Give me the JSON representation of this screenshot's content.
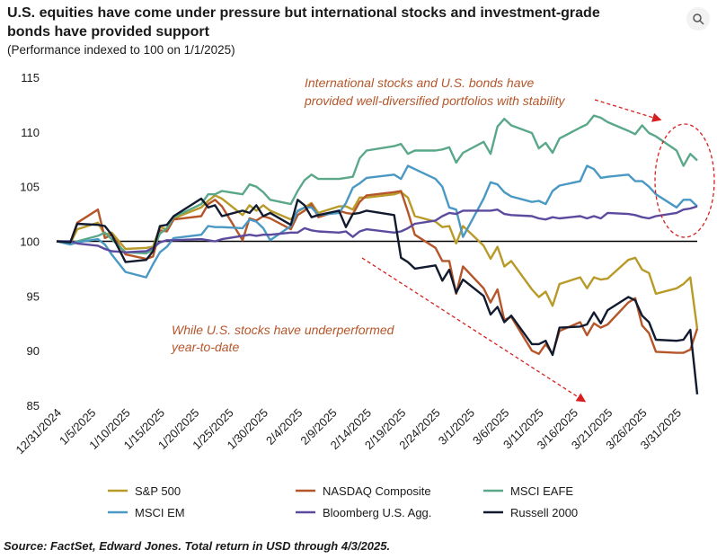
{
  "header": {
    "title": "U.S. equities have come under pressure but international  stocks and investment-grade bonds have provided support",
    "subtitle": "(Performance indexed to 100 on 1/1/2025)",
    "expand_icon": "expand-icon"
  },
  "source": "Source: FactSet, Edward Jones. Total return in USD through 4/3/2025.",
  "chart_data": {
    "type": "line",
    "title": "U.S. equities have come under pressure but international  stocks and investment-grade bonds have provided support",
    "subtitle": "(Performance indexed to 100 on 1/1/2025)",
    "ylim": [
      85,
      115
    ],
    "yticks": [
      "85",
      "90",
      "95",
      "100",
      "105",
      "110",
      "115"
    ],
    "xtick_labels": [
      "12/31/2024",
      "1/5/2025",
      "1/10/2025",
      "1/15/2025",
      "1/20/2025",
      "1/25/2025",
      "1/30/2025",
      "2/4/2025",
      "2/9/2025",
      "2/14/2025",
      "2/19/2025",
      "2/24/2025",
      "3/1/2025",
      "3/6/2025",
      "3/11/2025",
      "3/16/2025",
      "3/21/2025",
      "3/26/2025",
      "3/31/2025"
    ],
    "reference_line": 100,
    "legend_position": "bottom",
    "annotations": [
      {
        "lines": [
          "International stocks and U.S. bonds have",
          "provided well-diversified portfolios with stability"
        ]
      },
      {
        "lines": [
          "While U.S. stocks have underperformed",
          "year-to-date"
        ]
      }
    ],
    "series": [
      {
        "name": "S&P 500",
        "color": "#b89a28",
        "x": [
          "12/31/2024",
          "1/2/2025",
          "1/3/2025",
          "1/6/2025",
          "1/7/2025",
          "1/8/2025",
          "1/10/2025",
          "1/13/2025",
          "1/14/2025",
          "1/15/2025",
          "1/16/2025",
          "1/17/2025",
          "1/21/2025",
          "1/22/2025",
          "1/23/2025",
          "1/24/2025",
          "1/27/2025",
          "1/28/2025",
          "1/29/2025",
          "1/30/2025",
          "1/31/2025",
          "2/3/2025",
          "2/4/2025",
          "2/5/2025",
          "2/6/2025",
          "2/7/2025",
          "2/10/2025",
          "2/11/2025",
          "2/12/2025",
          "2/13/2025",
          "2/14/2025",
          "2/18/2025",
          "2/19/2025",
          "2/20/2025",
          "2/21/2025",
          "2/24/2025",
          "2/25/2025",
          "2/26/2025",
          "2/27/2025",
          "2/28/2025",
          "3/3/2025",
          "3/4/2025",
          "3/5/2025",
          "3/6/2025",
          "3/7/2025",
          "3/10/2025",
          "3/11/2025",
          "3/12/2025",
          "3/13/2025",
          "3/14/2025",
          "3/17/2025",
          "3/18/2025",
          "3/19/2025",
          "3/20/2025",
          "3/21/2025",
          "3/24/2025",
          "3/25/2025",
          "3/26/2025",
          "3/27/2025",
          "3/28/2025",
          "3/31/2025",
          "4/1/2025",
          "4/2/2025",
          "4/3/2025"
        ],
        "y": [
          100,
          99.8,
          101.1,
          101.7,
          100.6,
          100.8,
          99.3,
          99.4,
          99.5,
          101.3,
          101.1,
          102.1,
          103.1,
          103.7,
          104.2,
          103.9,
          102.4,
          103.3,
          102.8,
          103.3,
          102.8,
          102.0,
          102.7,
          103.1,
          103.5,
          102.6,
          103.2,
          103.2,
          102.9,
          104.0,
          104.0,
          104.3,
          104.5,
          104.0,
          102.3,
          101.8,
          101.3,
          101.4,
          99.8,
          101.4,
          99.6,
          98.4,
          99.5,
          97.7,
          98.2,
          95.6,
          94.9,
          95.4,
          94.1,
          96.1,
          96.7,
          95.7,
          96.7,
          96.5,
          96.6,
          98.3,
          98.5,
          97.4,
          97.1,
          95.2,
          95.7,
          96.1,
          96.7,
          92.0
        ]
      },
      {
        "name": "NASDAQ Composite",
        "color": "#b5562a",
        "x": [
          "12/31/2024",
          "1/2/2025",
          "1/3/2025",
          "1/6/2025",
          "1/7/2025",
          "1/8/2025",
          "1/10/2025",
          "1/13/2025",
          "1/14/2025",
          "1/15/2025",
          "1/16/2025",
          "1/17/2025",
          "1/21/2025",
          "1/22/2025",
          "1/23/2025",
          "1/24/2025",
          "1/27/2025",
          "1/28/2025",
          "1/29/2025",
          "1/30/2025",
          "1/31/2025",
          "2/3/2025",
          "2/4/2025",
          "2/5/2025",
          "2/6/2025",
          "2/7/2025",
          "2/10/2025",
          "2/11/2025",
          "2/12/2025",
          "2/13/2025",
          "2/14/2025",
          "2/18/2025",
          "2/19/2025",
          "2/20/2025",
          "2/21/2025",
          "2/24/2025",
          "2/25/2025",
          "2/26/2025",
          "2/27/2025",
          "2/28/2025",
          "3/3/2025",
          "3/4/2025",
          "3/5/2025",
          "3/6/2025",
          "3/7/2025",
          "3/10/2025",
          "3/11/2025",
          "3/12/2025",
          "3/13/2025",
          "3/14/2025",
          "3/17/2025",
          "3/18/2025",
          "3/19/2025",
          "3/20/2025",
          "3/21/2025",
          "3/24/2025",
          "3/25/2025",
          "3/26/2025",
          "3/27/2025",
          "3/28/2025",
          "3/31/2025",
          "4/1/2025",
          "4/2/2025",
          "4/3/2025"
        ],
        "y": [
          100,
          99.9,
          101.7,
          102.9,
          100.3,
          100.6,
          98.8,
          98.4,
          98.6,
          101.0,
          100.9,
          102.0,
          102.3,
          103.4,
          103.8,
          103.2,
          100.1,
          102.1,
          101.9,
          102.3,
          102.1,
          101.1,
          102.4,
          102.8,
          103.4,
          102.2,
          102.8,
          102.6,
          102.5,
          103.6,
          104.2,
          104.5,
          104.6,
          102.7,
          100.6,
          99.4,
          98.2,
          98.2,
          95.2,
          97.7,
          95.7,
          94.4,
          95.6,
          92.8,
          93.1,
          90.0,
          89.7,
          90.6,
          89.7,
          91.8,
          92.6,
          91.4,
          92.5,
          92.1,
          92.4,
          94.4,
          94.8,
          92.3,
          91.6,
          89.9,
          89.8,
          89.8,
          90.1,
          92.0
        ]
      },
      {
        "name": "MSCI EAFE",
        "color": "#5aa889",
        "x": [
          "12/31/2024",
          "1/2/2025",
          "1/3/2025",
          "1/6/2025",
          "1/7/2025",
          "1/8/2025",
          "1/10/2025",
          "1/13/2025",
          "1/14/2025",
          "1/15/2025",
          "1/16/2025",
          "1/17/2025",
          "1/21/2025",
          "1/22/2025",
          "1/23/2025",
          "1/24/2025",
          "1/27/2025",
          "1/28/2025",
          "1/29/2025",
          "1/30/2025",
          "1/31/2025",
          "2/3/2025",
          "2/4/2025",
          "2/5/2025",
          "2/6/2025",
          "2/7/2025",
          "2/10/2025",
          "2/11/2025",
          "2/12/2025",
          "2/13/2025",
          "2/14/2025",
          "2/18/2025",
          "2/19/2025",
          "2/20/2025",
          "2/21/2025",
          "2/24/2025",
          "2/25/2025",
          "2/26/2025",
          "2/27/2025",
          "2/28/2025",
          "3/3/2025",
          "3/4/2025",
          "3/5/2025",
          "3/6/2025",
          "3/7/2025",
          "3/10/2025",
          "3/11/2025",
          "3/12/2025",
          "3/13/2025",
          "3/14/2025",
          "3/17/2025",
          "3/18/2025",
          "3/19/2025",
          "3/20/2025",
          "3/21/2025",
          "3/24/2025",
          "3/25/2025",
          "3/26/2025",
          "3/27/2025",
          "3/28/2025",
          "3/31/2025",
          "4/1/2025",
          "4/2/2025",
          "4/3/2025"
        ],
        "y": [
          100,
          99.8,
          100.0,
          100.5,
          100.8,
          100.2,
          99.0,
          98.9,
          99.2,
          100.7,
          101.2,
          102.2,
          103.4,
          104.3,
          104.3,
          104.6,
          104.3,
          105.2,
          105.0,
          104.5,
          103.8,
          103.4,
          104.6,
          105.6,
          106.1,
          105.7,
          105.7,
          105.8,
          105.9,
          107.6,
          108.3,
          108.7,
          108.9,
          108.0,
          108.3,
          108.3,
          108.4,
          108.6,
          107.2,
          108.1,
          109.1,
          108.0,
          110.5,
          111.2,
          110.6,
          109.9,
          108.5,
          109.0,
          108.1,
          109.4,
          110.4,
          110.7,
          111.5,
          111.3,
          110.9,
          110.1,
          109.8,
          110.6,
          109.9,
          109.6,
          108.3,
          106.9,
          108.0,
          107.4
        ]
      },
      {
        "name": "MSCI EM",
        "color": "#4a98c4",
        "x": [
          "12/31/2024",
          "1/2/2025",
          "1/3/2025",
          "1/6/2025",
          "1/7/2025",
          "1/8/2025",
          "1/10/2025",
          "1/13/2025",
          "1/14/2025",
          "1/15/2025",
          "1/16/2025",
          "1/17/2025",
          "1/21/2025",
          "1/22/2025",
          "1/23/2025",
          "1/24/2025",
          "1/27/2025",
          "1/28/2025",
          "1/29/2025",
          "1/30/2025",
          "1/31/2025",
          "2/3/2025",
          "2/4/2025",
          "2/5/2025",
          "2/6/2025",
          "2/7/2025",
          "2/10/2025",
          "2/11/2025",
          "2/12/2025",
          "2/13/2025",
          "2/14/2025",
          "2/18/2025",
          "2/19/2025",
          "2/20/2025",
          "2/21/2025",
          "2/24/2025",
          "2/25/2025",
          "2/26/2025",
          "2/27/2025",
          "2/28/2025",
          "3/3/2025",
          "3/4/2025",
          "3/5/2025",
          "3/6/2025",
          "3/7/2025",
          "3/10/2025",
          "3/11/2025",
          "3/12/2025",
          "3/13/2025",
          "3/14/2025",
          "3/17/2025",
          "3/18/2025",
          "3/19/2025",
          "3/20/2025",
          "3/21/2025",
          "3/24/2025",
          "3/25/2025",
          "3/26/2025",
          "3/27/2025",
          "3/28/2025",
          "3/31/2025",
          "4/1/2025",
          "4/2/2025",
          "4/3/2025"
        ],
        "y": [
          100,
          99.7,
          99.9,
          100.2,
          99.7,
          98.8,
          97.2,
          96.7,
          97.9,
          99.0,
          99.5,
          100.3,
          100.6,
          101.4,
          101.3,
          101.3,
          101.2,
          102.0,
          101.8,
          101.2,
          100.1,
          101.4,
          102.8,
          103.1,
          103.1,
          102.4,
          102.6,
          103.5,
          104.9,
          105.3,
          105.8,
          106.1,
          105.7,
          106.9,
          106.6,
          105.7,
          105.0,
          103.1,
          102.9,
          100.4,
          103.9,
          105.4,
          105.2,
          104.5,
          104.1,
          103.6,
          103.7,
          103.4,
          104.6,
          105.1,
          105.5,
          106.9,
          106.6,
          105.8,
          105.9,
          106.1,
          105.5,
          105.5,
          105.0,
          104.3,
          103.1,
          103.8,
          103.8,
          103.2
        ]
      },
      {
        "name": "Bloomberg U.S. Agg.",
        "color": "#5b4a9e",
        "x": [
          "12/31/2024",
          "1/2/2025",
          "1/3/2025",
          "1/6/2025",
          "1/7/2025",
          "1/8/2025",
          "1/10/2025",
          "1/13/2025",
          "1/14/2025",
          "1/15/2025",
          "1/16/2025",
          "1/17/2025",
          "1/21/2025",
          "1/22/2025",
          "1/23/2025",
          "1/24/2025",
          "1/27/2025",
          "1/28/2025",
          "1/29/2025",
          "1/30/2025",
          "1/31/2025",
          "2/3/2025",
          "2/4/2025",
          "2/5/2025",
          "2/6/2025",
          "2/7/2025",
          "2/10/2025",
          "2/11/2025",
          "2/12/2025",
          "2/13/2025",
          "2/14/2025",
          "2/18/2025",
          "2/19/2025",
          "2/20/2025",
          "2/21/2025",
          "2/24/2025",
          "2/25/2025",
          "2/26/2025",
          "2/27/2025",
          "2/28/2025",
          "3/3/2025",
          "3/4/2025",
          "3/5/2025",
          "3/6/2025",
          "3/7/2025",
          "3/10/2025",
          "3/11/2025",
          "3/12/2025",
          "3/13/2025",
          "3/14/2025",
          "3/17/2025",
          "3/18/2025",
          "3/19/2025",
          "3/20/2025",
          "3/21/2025",
          "3/24/2025",
          "3/25/2025",
          "3/26/2025",
          "3/27/2025",
          "3/28/2025",
          "3/31/2025",
          "4/1/2025",
          "4/2/2025",
          "4/3/2025"
        ],
        "y": [
          100,
          100.0,
          99.8,
          99.6,
          99.3,
          99.1,
          99.0,
          99.1,
          99.4,
          99.9,
          100.1,
          100.1,
          100.2,
          100.1,
          100.0,
          100.2,
          100.5,
          100.6,
          100.5,
          100.6,
          100.6,
          100.8,
          100.8,
          101.2,
          101.0,
          100.9,
          100.8,
          100.9,
          100.4,
          100.9,
          101.1,
          100.8,
          100.9,
          101.2,
          101.6,
          101.9,
          102.3,
          102.6,
          102.5,
          102.8,
          102.8,
          102.8,
          102.9,
          102.5,
          102.4,
          102.3,
          102.1,
          102.0,
          102.2,
          102.1,
          102.3,
          102.1,
          102.3,
          102.1,
          102.6,
          102.5,
          102.4,
          102.2,
          102.1,
          102.3,
          102.6,
          102.9,
          103.0,
          103.2
        ]
      },
      {
        "name": "Russell 2000",
        "color": "#111a2e",
        "x": [
          "12/31/2024",
          "1/2/2025",
          "1/3/2025",
          "1/6/2025",
          "1/7/2025",
          "1/8/2025",
          "1/10/2025",
          "1/13/2025",
          "1/14/2025",
          "1/15/2025",
          "1/16/2025",
          "1/17/2025",
          "1/21/2025",
          "1/22/2025",
          "1/23/2025",
          "1/24/2025",
          "1/27/2025",
          "1/28/2025",
          "1/29/2025",
          "1/30/2025",
          "1/31/2025",
          "2/3/2025",
          "2/4/2025",
          "2/5/2025",
          "2/6/2025",
          "2/7/2025",
          "2/10/2025",
          "2/11/2025",
          "2/12/2025",
          "2/13/2025",
          "2/14/2025",
          "2/18/2025",
          "2/19/2025",
          "2/20/2025",
          "2/21/2025",
          "2/24/2025",
          "2/25/2025",
          "2/26/2025",
          "2/27/2025",
          "2/28/2025",
          "3/3/2025",
          "3/4/2025",
          "3/5/2025",
          "3/6/2025",
          "3/7/2025",
          "3/10/2025",
          "3/11/2025",
          "3/12/2025",
          "3/13/2025",
          "3/14/2025",
          "3/17/2025",
          "3/18/2025",
          "3/19/2025",
          "3/20/2025",
          "3/21/2025",
          "3/24/2025",
          "3/25/2025",
          "3/26/2025",
          "3/27/2025",
          "3/28/2025",
          "3/31/2025",
          "4/1/2025",
          "4/2/2025",
          "4/3/2025"
        ],
        "y": [
          100,
          99.9,
          101.6,
          101.5,
          101.4,
          100.6,
          98.1,
          98.3,
          99.1,
          101.4,
          101.5,
          102.3,
          103.9,
          103.1,
          103.3,
          102.3,
          102.8,
          102.6,
          103.3,
          102.3,
          102.6,
          101.5,
          103.8,
          103.3,
          102.2,
          102.4,
          102.8,
          101.3,
          102.5,
          102.6,
          102.8,
          102.4,
          98.5,
          98.1,
          97.5,
          97.8,
          96.4,
          97.4,
          95.3,
          96.5,
          95.0,
          93.3,
          94.0,
          92.6,
          93.2,
          90.6,
          90.6,
          90.9,
          89.6,
          92.1,
          92.2,
          92.4,
          93.5,
          92.5,
          93.7,
          94.9,
          94.6,
          93.2,
          92.6,
          91.0,
          90.9,
          91.0,
          91.9,
          86.0
        ]
      }
    ]
  }
}
